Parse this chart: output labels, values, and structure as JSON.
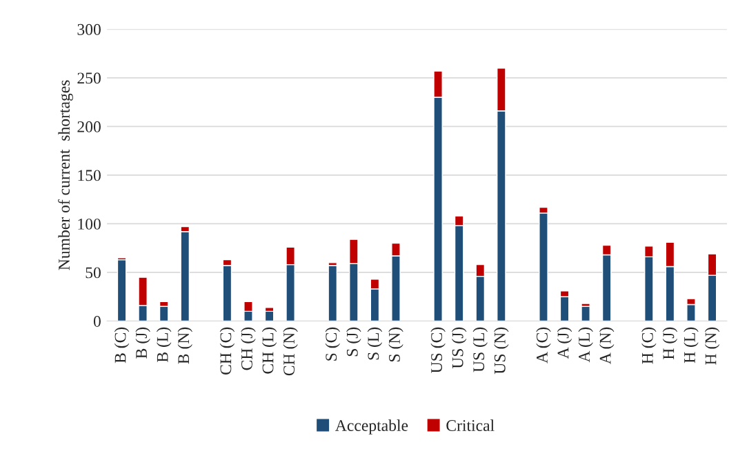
{
  "chart_data": {
    "type": "bar",
    "stacked": true,
    "ylabel": "Number of current  shortages",
    "categories": [
      "B (C)",
      "B (J)",
      "B (L)",
      "B (N)",
      null,
      "CH (C)",
      "CH (J)",
      "CH (L)",
      "CH (N)",
      null,
      "S (C)",
      "S (J)",
      "S (L)",
      "S (N)",
      null,
      "US (C)",
      "US (J)",
      "US (L)",
      "US (N)",
      null,
      "A (C)",
      "A (J)",
      "A (L)",
      "A (N)",
      null,
      "H (C)",
      "H (J)",
      "H (L)",
      "H (N)"
    ],
    "series": [
      {
        "name": "Acceptable",
        "color": "#1f4e79",
        "values": [
          63,
          16,
          15,
          92,
          null,
          57,
          10,
          10,
          58,
          null,
          57,
          59,
          33,
          67,
          null,
          230,
          98,
          46,
          216,
          null,
          111,
          25,
          15,
          68,
          null,
          66,
          56,
          17,
          47
        ]
      },
      {
        "name": "Critical",
        "color": "#c00000",
        "values": [
          2,
          29,
          5,
          5,
          null,
          6,
          10,
          4,
          18,
          null,
          3,
          25,
          10,
          13,
          null,
          27,
          10,
          12,
          44,
          null,
          6,
          6,
          3,
          10,
          null,
          11,
          25,
          6,
          22
        ]
      }
    ],
    "ylim": [
      0,
      300
    ],
    "yticks": [
      0,
      50,
      100,
      150,
      200,
      250,
      300
    ],
    "grid": "y",
    "legend": "bottom"
  }
}
